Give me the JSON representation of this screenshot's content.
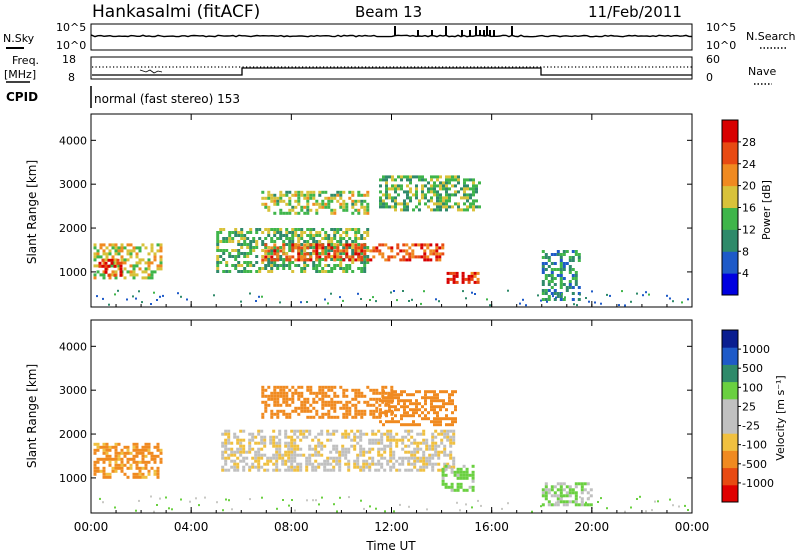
{
  "header": {
    "station": "Hankasalmi (fitACF)",
    "beam": "Beam 13",
    "date": "11/Feb/2011"
  },
  "panels": {
    "noise": {
      "left_label": "N.Sky",
      "right_label": "N.Search",
      "ticks_left": [
        "10^5",
        "10^0"
      ],
      "ticks_right": [
        "10^5",
        "10^0"
      ]
    },
    "freq": {
      "left_label_1": "Freq.",
      "left_label_2": "[MHz]",
      "right_label": "Nave",
      "ticks_left": [
        "18",
        "8"
      ],
      "ticks_right": [
        "60",
        "0"
      ]
    },
    "cpid": {
      "label": "CPID",
      "text": "normal (fast stereo) 153"
    }
  },
  "colors": {
    "power_scale": [
      "#0000e0",
      "#1e5ac8",
      "#2f8a6a",
      "#3fb54a",
      "#d8c23a",
      "#f08a20",
      "#e84a12",
      "#d80000"
    ],
    "velocity_scale": [
      "#e00000",
      "#e84a12",
      "#f08a20",
      "#f0c040",
      "#c0c0c0",
      "#c0c0c0",
      "#6ad040",
      "#2f8a6a",
      "#1e5ac8",
      "#0a1e90"
    ],
    "scatter_grey": "#c8c8c4"
  },
  "chart_data": [
    {
      "type": "heatmap",
      "title": "",
      "xlabel": "Time UT",
      "ylabel": "Slant Range [km]",
      "x_ticks": [
        "00:00",
        "04:00",
        "08:00",
        "12:00",
        "16:00",
        "20:00",
        "00:00"
      ],
      "y_ticks": [
        "4000",
        "3000",
        "2000",
        "1000"
      ],
      "ylim": [
        200,
        4600
      ],
      "colorbar": {
        "label": "Power [dB]",
        "ticks": [
          "28",
          "24",
          "20",
          "16",
          "12",
          "8",
          "4"
        ],
        "range": [
          0,
          32
        ]
      },
      "regions": [
        {
          "t": [
            0.1,
            2.8
          ],
          "r": [
            850,
            1650
          ],
          "power": 18
        },
        {
          "t": [
            0.3,
            1.2
          ],
          "r": [
            900,
            1300
          ],
          "power": 30
        },
        {
          "t": [
            5.0,
            11.0
          ],
          "r": [
            1000,
            2000
          ],
          "power": 14
        },
        {
          "t": [
            6.8,
            14.0
          ],
          "r": [
            1300,
            1650
          ],
          "power": 26
        },
        {
          "t": [
            6.8,
            11.0
          ],
          "r": [
            2350,
            2850
          ],
          "power": 16
        },
        {
          "t": [
            11.5,
            15.5
          ],
          "r": [
            2400,
            3200
          ],
          "power": 14
        },
        {
          "t": [
            14.2,
            15.5
          ],
          "r": [
            750,
            1000
          ],
          "power": 28
        },
        {
          "t": [
            18.0,
            19.5
          ],
          "r": [
            400,
            1500
          ],
          "power": 10
        }
      ]
    },
    {
      "type": "heatmap",
      "title": "",
      "xlabel": "Time UT",
      "ylabel": "Slant Range [km]",
      "x_ticks": [
        "00:00",
        "04:00",
        "08:00",
        "12:00",
        "16:00",
        "20:00",
        "00:00"
      ],
      "y_ticks": [
        "4000",
        "3000",
        "2000",
        "1000"
      ],
      "ylim": [
        200,
        4600
      ],
      "colorbar": {
        "label": "Velocity [m s⁻¹]",
        "ticks": [
          "1000",
          "500",
          "100",
          "25",
          "-25",
          "-100",
          "-500",
          "-1000"
        ],
        "range": [
          -1000,
          1000
        ]
      },
      "regions": [
        {
          "t": [
            0.1,
            2.8
          ],
          "r": [
            1000,
            1800
          ],
          "velocity": -150
        },
        {
          "t": [
            5.2,
            14.5
          ],
          "r": [
            1200,
            2100
          ],
          "velocity": 0
        },
        {
          "t": [
            6.8,
            12.0
          ],
          "r": [
            2350,
            3100
          ],
          "velocity": -300
        },
        {
          "t": [
            11.5,
            14.5
          ],
          "r": [
            2200,
            3000
          ],
          "velocity": -200
        },
        {
          "t": [
            14.0,
            15.2
          ],
          "r": [
            700,
            1300
          ],
          "velocity": 150
        },
        {
          "t": [
            18.0,
            20.0
          ],
          "r": [
            400,
            900
          ],
          "velocity": 100
        }
      ]
    }
  ]
}
